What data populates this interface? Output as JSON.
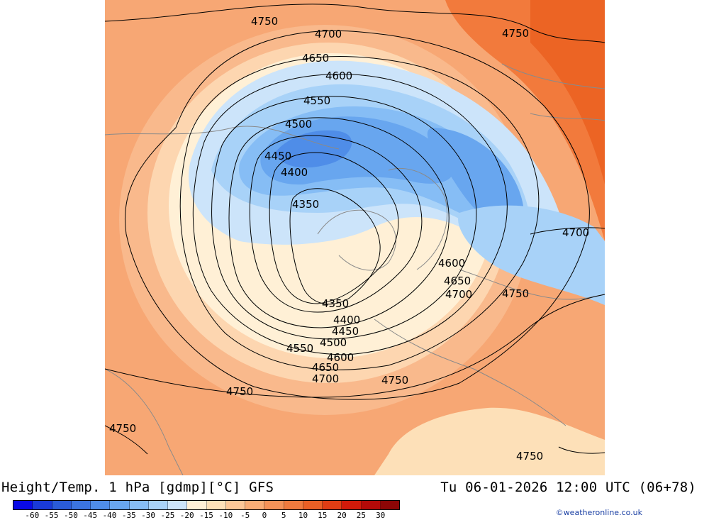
{
  "map": {
    "contour_levels": [
      4350,
      4400,
      4450,
      4500,
      4550,
      4600,
      4650,
      4700,
      4750
    ],
    "contour_labels": [
      {
        "text": "4750"
      },
      {
        "text": "4700"
      },
      {
        "text": "4750"
      },
      {
        "text": "4650"
      },
      {
        "text": "4600"
      },
      {
        "text": "4550"
      },
      {
        "text": "4500"
      },
      {
        "text": "4450"
      },
      {
        "text": "4400"
      },
      {
        "text": "4350"
      },
      {
        "text": "4700"
      },
      {
        "text": "4600"
      },
      {
        "text": "4650"
      },
      {
        "text": "4700"
      },
      {
        "text": "4750"
      },
      {
        "text": "4350"
      },
      {
        "text": "4400"
      },
      {
        "text": "4450"
      },
      {
        "text": "4500"
      },
      {
        "text": "4550"
      },
      {
        "text": "4600"
      },
      {
        "text": "4650"
      },
      {
        "text": "4700"
      },
      {
        "text": "4750"
      },
      {
        "text": "4750"
      },
      {
        "text": "4750"
      },
      {
        "text": "4750"
      }
    ]
  },
  "footer": {
    "title": "Height/Temp. 1 hPa [gdmp][°C] GFS",
    "datetime": "Tu 06-01-2026 12:00 UTC (06+78)",
    "credit": "©weatheronline.co.uk"
  },
  "legend": {
    "tick_labels": [
      "-60",
      "-55",
      "-50",
      "-45",
      "-40",
      "-35",
      "-30",
      "-25",
      "-20",
      "-15",
      "-10",
      "-5",
      "0",
      "5",
      "10",
      "15",
      "20",
      "25",
      "30"
    ],
    "colors": [
      "#0a0ae6",
      "#1a3ad8",
      "#2a5bd8",
      "#3b74e0",
      "#4f8de8",
      "#68a6ef",
      "#86bdf5",
      "#a8d2f8",
      "#cce4fa",
      "#fff0d6",
      "#fde0b8",
      "#fcc797",
      "#f9ad76",
      "#f59258",
      "#f07a3e",
      "#ea5f25",
      "#e03d14",
      "#d11a0a",
      "#b40a08",
      "#8c0606"
    ]
  }
}
